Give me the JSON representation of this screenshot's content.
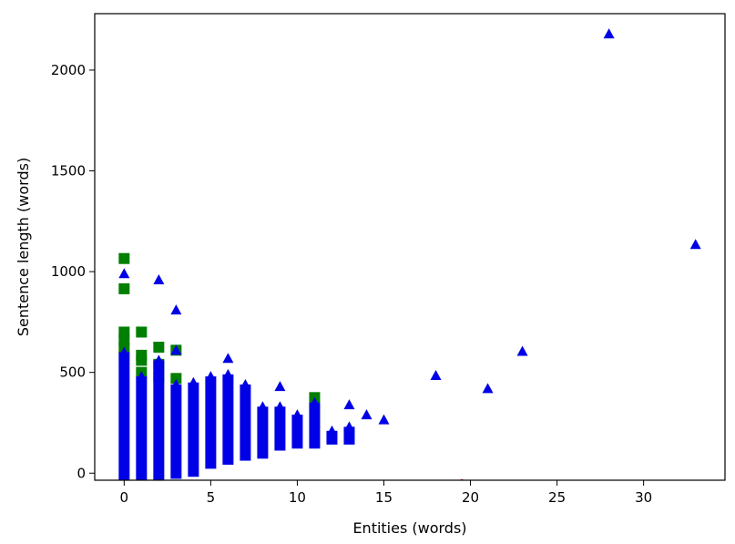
{
  "chart_data": {
    "type": "scatter",
    "title": "",
    "xlabel": "Entities (words)",
    "ylabel": "Sentence length (words)",
    "xlim": [
      -1.7,
      34.7
    ],
    "ylim": [
      -35,
      2280
    ],
    "x_ticks": [
      0,
      5,
      10,
      15,
      20,
      25,
      30
    ],
    "y_ticks": [
      0,
      500,
      1000,
      1500,
      2000
    ],
    "grid": false,
    "legend": "none",
    "colors": {
      "green_squares": "#007f00",
      "blue_triangles": "#0000e6",
      "red_dot": "#d62728"
    },
    "series": [
      {
        "marker": "square",
        "color": "#007f00",
        "points": [
          [
            0,
            1065
          ],
          [
            0,
            915
          ],
          [
            0,
            700
          ],
          [
            0,
            660
          ],
          [
            0,
            620
          ],
          [
            1,
            700
          ],
          [
            1,
            585
          ],
          [
            1,
            560
          ],
          [
            1,
            500
          ],
          [
            2,
            625
          ],
          [
            2,
            540
          ],
          [
            2,
            480
          ],
          [
            3,
            610
          ],
          [
            3,
            470
          ],
          [
            11,
            375
          ]
        ]
      },
      {
        "marker": "triangle",
        "color": "#0000e6",
        "columns": [
          {
            "x": 0,
            "min": -20,
            "max": 600
          },
          {
            "x": 1,
            "min": -20,
            "max": 480
          },
          {
            "x": 2,
            "min": -15,
            "max": 560
          },
          {
            "x": 3,
            "min": -10,
            "max": 440
          },
          {
            "x": 4,
            "min": 0,
            "max": 450
          },
          {
            "x": 5,
            "min": 40,
            "max": 480
          },
          {
            "x": 6,
            "min": 60,
            "max": 490
          },
          {
            "x": 7,
            "min": 80,
            "max": 440
          },
          {
            "x": 8,
            "min": 90,
            "max": 330
          },
          {
            "x": 9,
            "min": 130,
            "max": 330
          },
          {
            "x": 10,
            "min": 140,
            "max": 290
          },
          {
            "x": 11,
            "min": 140,
            "max": 350
          },
          {
            "x": 12,
            "min": 160,
            "max": 210
          },
          {
            "x": 13,
            "min": 160,
            "max": 230
          }
        ],
        "points": [
          [
            0,
            990
          ],
          [
            0,
            580
          ],
          [
            2,
            960
          ],
          [
            3,
            810
          ],
          [
            3,
            610
          ],
          [
            6,
            570
          ],
          [
            9,
            430
          ],
          [
            11,
            350
          ],
          [
            13,
            340
          ],
          [
            14,
            290
          ],
          [
            15,
            265
          ],
          [
            18,
            485
          ],
          [
            21,
            420
          ],
          [
            23,
            605
          ],
          [
            28,
            2180
          ],
          [
            33,
            1135
          ]
        ]
      },
      {
        "marker": "dot",
        "color": "#d62728",
        "points": [
          [
            19.5,
            -40
          ]
        ]
      }
    ]
  }
}
